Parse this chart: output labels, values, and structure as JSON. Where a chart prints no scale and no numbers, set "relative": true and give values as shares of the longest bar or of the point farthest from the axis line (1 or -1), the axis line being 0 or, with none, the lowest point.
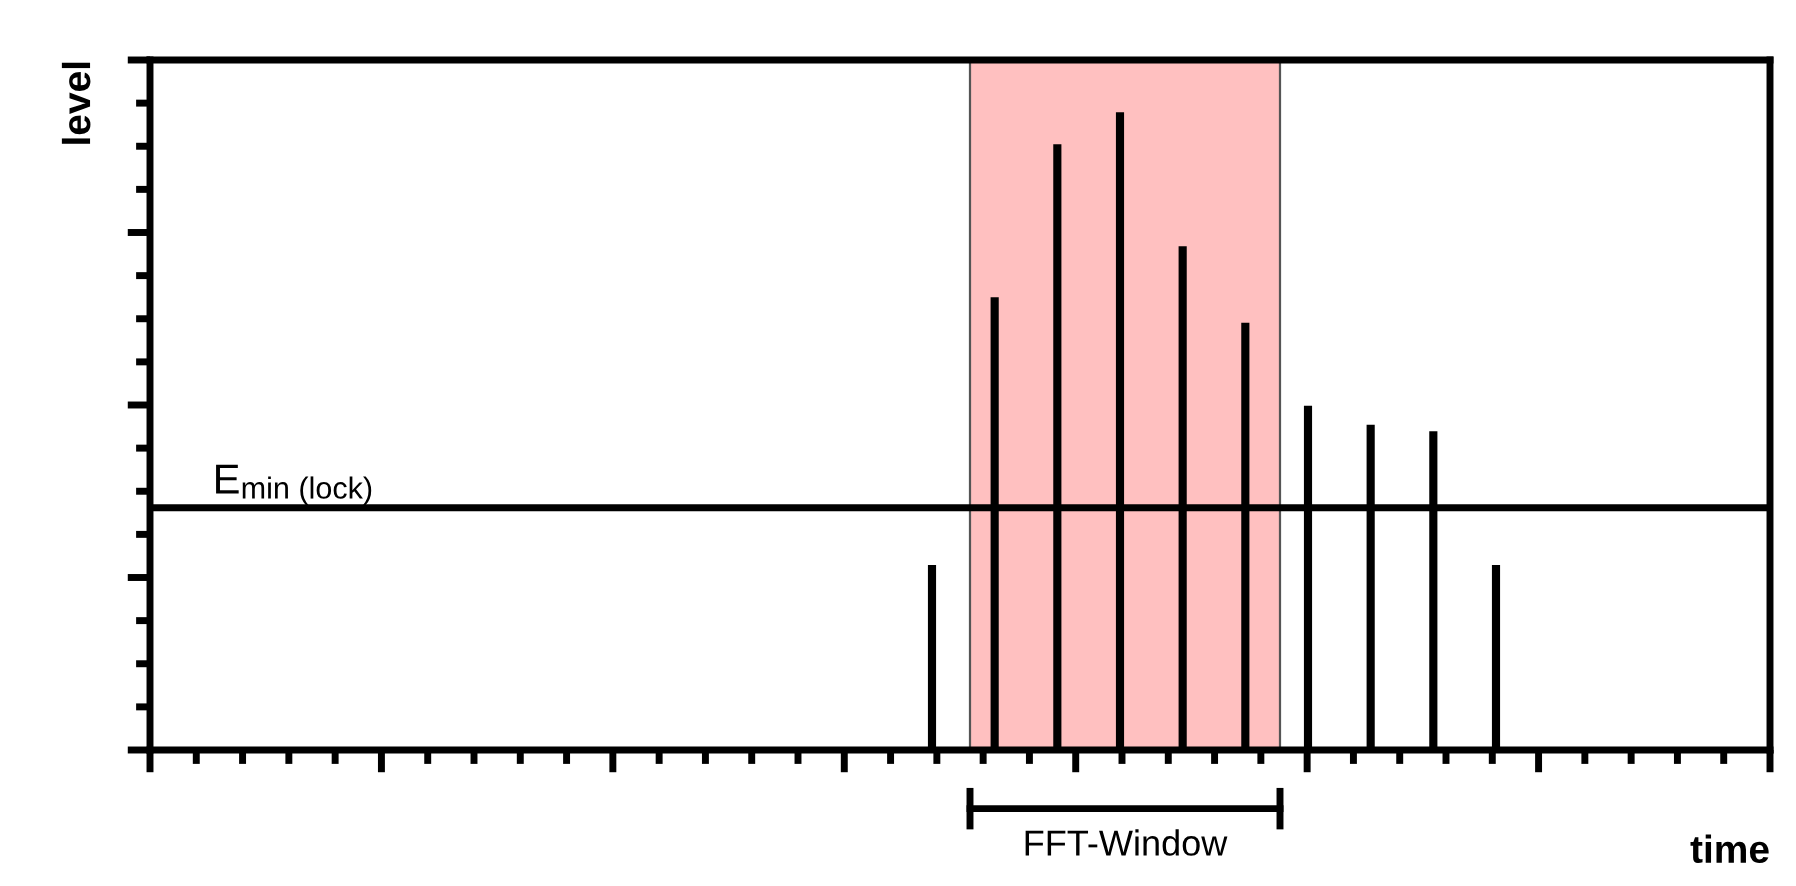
{
  "chart_data": {
    "type": "bar",
    "relative": true,
    "xlabel": "time",
    "categories": [
      null,
      null,
      null,
      null,
      null,
      null,
      null,
      null,
      null,
      null
    ],
    "series": [
      {
        "color": "#000000",
        "values": [
          0.29,
          0.71,
          0.95,
          1,
          0.79,
          0.67,
          0.54,
          0.51,
          0.5,
          0.29
        ]
      }
    ],
    "ref_lines": [
      {
        "axis": "y",
        "value": 0.38,
        "label": "E$_{min (lock)}$",
        "color": "#000000"
      }
    ],
    "annotations": [
      "level",
      "FFT-Window"
    ]
  }
}
